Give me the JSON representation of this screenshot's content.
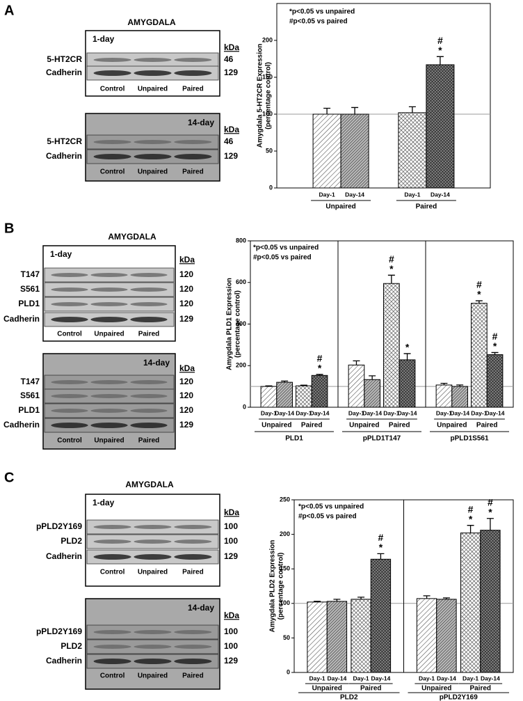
{
  "blots": [
    {
      "panel": "A",
      "title": "AMYGDALA",
      "unit": "kDa",
      "lanes": [
        "Control",
        "Unpaired",
        "Paired"
      ],
      "periods": [
        {
          "name": "1-day",
          "rows": [
            {
              "label": "5-HT2CR",
              "kda": 46
            },
            {
              "label": "Cadherin",
              "kda": 129
            }
          ]
        },
        {
          "name": "14-day",
          "rows": [
            {
              "label": "5-HT2CR",
              "kda": 46
            },
            {
              "label": "Cadherin",
              "kda": 129
            }
          ]
        }
      ]
    },
    {
      "panel": "B",
      "title": "AMYGDALA",
      "unit": "kDa",
      "lanes": [
        "Control",
        "Unpaired",
        "Paired"
      ],
      "periods": [
        {
          "name": "1-day",
          "rows": [
            {
              "label": "T147",
              "kda": 120
            },
            {
              "label": "S561",
              "kda": 120
            },
            {
              "label": "PLD1",
              "kda": 120
            },
            {
              "label": "Cadherin",
              "kda": 129
            }
          ]
        },
        {
          "name": "14-day",
          "rows": [
            {
              "label": "T147",
              "kda": 120
            },
            {
              "label": "S561",
              "kda": 120
            },
            {
              "label": "PLD1",
              "kda": 120
            },
            {
              "label": "Cadherin",
              "kda": 129
            }
          ]
        }
      ]
    },
    {
      "panel": "C",
      "title": "AMYGDALA",
      "unit": "kDa",
      "lanes": [
        "Control",
        "Unpaired",
        "Paired"
      ],
      "periods": [
        {
          "name": "1-day",
          "rows": [
            {
              "label": "pPLD2Y169",
              "kda": 100
            },
            {
              "label": "PLD2",
              "kda": 100
            },
            {
              "label": "Cadherin",
              "kda": 129
            }
          ]
        },
        {
          "name": "14-day",
          "rows": [
            {
              "label": "pPLD2Y169",
              "kda": 100
            },
            {
              "label": "PLD2",
              "kda": 100
            },
            {
              "label": "Cadherin",
              "kda": 129
            }
          ]
        }
      ]
    }
  ],
  "chart_data": [
    {
      "type": "bar",
      "ylabel": [
        "Amygdala 5-HT2CR Expression",
        "(percentage control)"
      ],
      "notes": [
        "*p<0.05 vs unpaired",
        "#p<0.05 vs paired"
      ],
      "ylim": [
        0,
        250
      ],
      "yticks": [
        0,
        50,
        100,
        150,
        200
      ],
      "reference_line": 100,
      "categories": [
        "Day-1",
        "Day-14",
        "Day-1",
        "Day-14"
      ],
      "groups": [
        "Unpaired",
        "Paired"
      ],
      "values": [
        100,
        100,
        102,
        167
      ],
      "errors": [
        8,
        9,
        8,
        11
      ],
      "annotations": [
        [],
        [],
        [],
        [
          "#",
          "*"
        ]
      ]
    },
    {
      "type": "bar",
      "ylabel": [
        "Amygdala PLD1 Expression",
        "(percentage control)"
      ],
      "notes": [
        "*p<0.05 vs unpaired",
        "#p<0.05 vs paired"
      ],
      "ylim": [
        0,
        800
      ],
      "yticks": [
        0,
        200,
        400,
        600,
        800
      ],
      "reference_line": 100,
      "categories": [
        "Day-1",
        "Day-14",
        "Day-1",
        "Day-14",
        "Day-1",
        "Day-14",
        "Day-1",
        "Day-14",
        "Day-1",
        "Day-14",
        "Day-1",
        "Day-14"
      ],
      "groups": [
        "Unpaired",
        "Paired",
        "Unpaired",
        "Paired",
        "Unpaired",
        "Paired"
      ],
      "sections": [
        "PLD1",
        "pPLD1T147",
        "pPLD1S561"
      ],
      "values": [
        100,
        120,
        103,
        153,
        203,
        133,
        595,
        228,
        107,
        100,
        500,
        253
      ],
      "errors": [
        3,
        6,
        3,
        5,
        20,
        18,
        40,
        30,
        8,
        7,
        12,
        10
      ],
      "annotations": [
        [],
        [],
        [],
        [
          "#",
          "*"
        ],
        [],
        [],
        [
          "#",
          "*"
        ],
        [
          "*"
        ],
        [],
        [],
        [
          "#",
          "*"
        ],
        [
          "#",
          "*"
        ]
      ]
    },
    {
      "type": "bar",
      "ylabel": [
        "Amygdala PLD2 Expression",
        "(percentage control)"
      ],
      "notes": [
        "*p<0.05 vs unpaired",
        "#p<0.05 vs paired"
      ],
      "ylim": [
        0,
        250
      ],
      "yticks": [
        0,
        50,
        100,
        150,
        200,
        250
      ],
      "reference_line": 100,
      "categories": [
        "Day-1",
        "Day-14",
        "Day-1",
        "Day-14",
        "Day-1",
        "Day-14",
        "Day-1",
        "Day-14"
      ],
      "groups": [
        "Unpaired",
        "Paired",
        "Unpaired",
        "Paired"
      ],
      "sections": [
        "PLD2",
        "pPLD2Y169"
      ],
      "values": [
        102,
        103,
        106,
        164,
        107,
        106,
        202,
        206
      ],
      "errors": [
        1,
        3,
        3,
        8,
        4,
        2,
        11,
        17
      ],
      "annotations": [
        [],
        [],
        [],
        [
          "#",
          "*"
        ],
        [],
        [],
        [
          "#",
          "*"
        ],
        [
          "#",
          "*"
        ]
      ]
    }
  ]
}
